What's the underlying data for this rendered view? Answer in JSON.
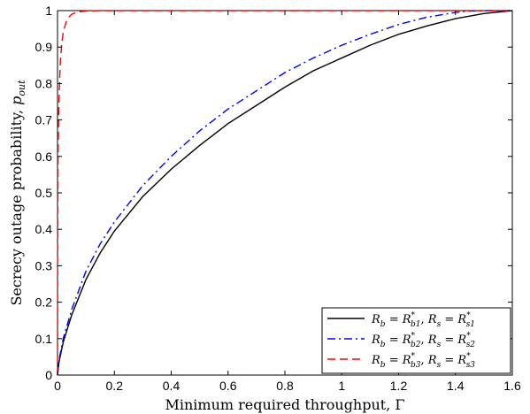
{
  "chart_data": {
    "type": "line",
    "xlabel_text": "Minimum required throughput, ",
    "xlabel_symbol": "Γ",
    "ylabel_text": "Secrecy outage probability, ",
    "ylabel_symbol": "p",
    "ylabel_subscript": "out",
    "xlim": [
      0,
      1.6
    ],
    "ylim": [
      0,
      1
    ],
    "xticks": [
      0,
      0.2,
      0.4,
      0.6,
      0.8,
      1,
      1.2,
      1.4,
      1.6
    ],
    "yticks": [
      0,
      0.1,
      0.2,
      0.3,
      0.4,
      0.5,
      0.6,
      0.7,
      0.8,
      0.9,
      1
    ],
    "xtick_labels": [
      "0",
      "0.2",
      "0.4",
      "0.6",
      "0.8",
      "1",
      "1.2",
      "1.4",
      "1.6"
    ],
    "ytick_labels": [
      "0",
      "0.1",
      "0.2",
      "0.3",
      "0.4",
      "0.5",
      "0.6",
      "0.7",
      "0.8",
      "0.9",
      "1"
    ],
    "grid": false,
    "legend_position": "bottom-right",
    "series": [
      {
        "name": "R_b = R*_b1, R_s = R*_s1",
        "legend_b_sub": "b1",
        "legend_s_sub": "s1",
        "color": "#000000",
        "style": "solid",
        "x": [
          0,
          0.005,
          0.02,
          0.05,
          0.1,
          0.15,
          0.2,
          0.3,
          0.4,
          0.5,
          0.6,
          0.7,
          0.8,
          0.9,
          1.0,
          1.1,
          1.2,
          1.3,
          1.4,
          1.5,
          1.6
        ],
        "y": [
          0,
          0.035,
          0.09,
          0.165,
          0.262,
          0.335,
          0.395,
          0.49,
          0.565,
          0.63,
          0.69,
          0.74,
          0.79,
          0.835,
          0.87,
          0.905,
          0.935,
          0.958,
          0.978,
          0.992,
          1.0
        ]
      },
      {
        "name": "R_b = R*_b2, R_s = R*_s2",
        "legend_b_sub": "b2",
        "legend_s_sub": "s2",
        "color": "#0000ff",
        "style": "dashdot",
        "x": [
          0,
          0.005,
          0.02,
          0.05,
          0.1,
          0.15,
          0.2,
          0.3,
          0.4,
          0.5,
          0.6,
          0.7,
          0.8,
          0.9,
          1.0,
          1.1,
          1.2,
          1.3,
          1.4,
          1.45,
          1.5,
          1.6
        ],
        "y": [
          0,
          0.04,
          0.1,
          0.18,
          0.285,
          0.36,
          0.42,
          0.52,
          0.6,
          0.67,
          0.73,
          0.78,
          0.83,
          0.87,
          0.905,
          0.935,
          0.962,
          0.982,
          0.995,
          0.999,
          1.0,
          1.0
        ]
      },
      {
        "name": "R_b = R*_b3, R_s = R*_s3",
        "legend_b_sub": "b3",
        "legend_s_sub": "s3",
        "color": "#ff0000",
        "style": "dashed",
        "x": [
          0,
          0.0005,
          0.001,
          0.002,
          0.004,
          0.007,
          0.01,
          0.015,
          0.02,
          0.03,
          0.04,
          0.05,
          0.07,
          0.1,
          0.15,
          0.2,
          0.4,
          0.8,
          1.2,
          1.6
        ],
        "y": [
          0,
          0.3,
          0.45,
          0.6,
          0.72,
          0.8,
          0.86,
          0.91,
          0.94,
          0.968,
          0.982,
          0.99,
          0.996,
          0.999,
          1.0,
          1.0,
          1.0,
          1.0,
          1.0,
          1.0
        ]
      }
    ]
  }
}
